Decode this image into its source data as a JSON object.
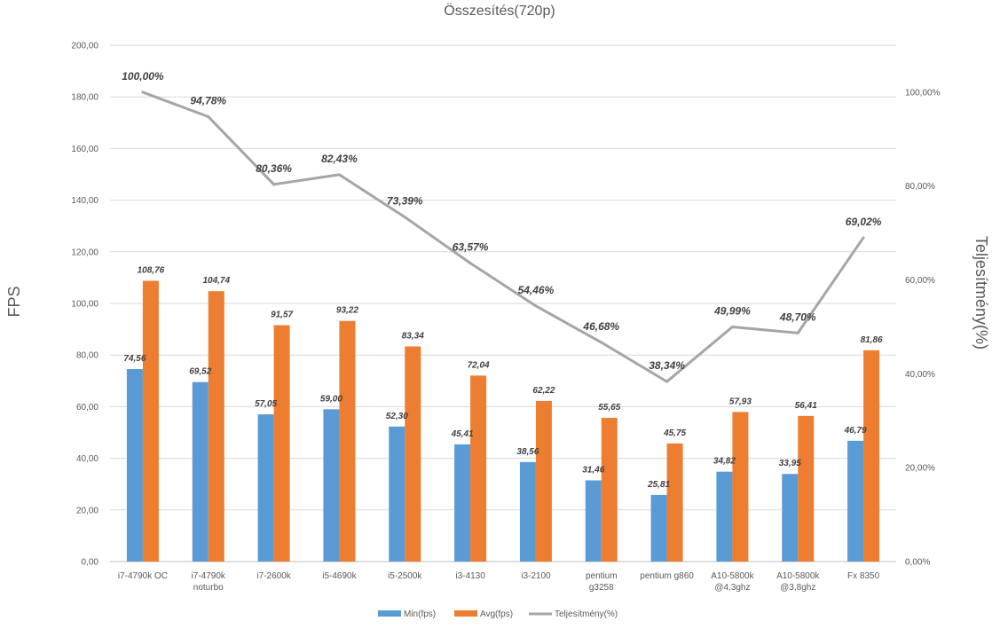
{
  "chart_data": {
    "type": "bar",
    "title": "Összesítés(720p)",
    "ylabel": "FPS",
    "y2label": "Teljesítmény(%)",
    "ylim": [
      0,
      200
    ],
    "y2lim": [
      0,
      1.1
    ],
    "yticks": [
      "0,00",
      "20,00",
      "40,00",
      "60,00",
      "80,00",
      "100,00",
      "120,00",
      "140,00",
      "160,00",
      "180,00",
      "200,00"
    ],
    "y2ticks": [
      "0,00%",
      "20,00%",
      "40,00%",
      "60,00%",
      "80,00%",
      "100,00%"
    ],
    "grid": true,
    "legend_position": "bottom",
    "categories": [
      [
        "i7-4790k OC"
      ],
      [
        "i7-4790k",
        "noturbo"
      ],
      [
        "i7-2600k"
      ],
      [
        "i5-4690k"
      ],
      [
        "i5-2500k"
      ],
      [
        "i3-4130"
      ],
      [
        "i3-2100"
      ],
      [
        "pentium",
        "g3258"
      ],
      [
        "pentium g860"
      ],
      [
        "A10-5800k",
        "@4,3ghz"
      ],
      [
        "A10-5800k",
        "@3,8ghz"
      ],
      [
        "Fx 8350"
      ]
    ],
    "series": [
      {
        "name": "Min(fps)",
        "kind": "bar",
        "color": "#5B9BD5",
        "values": [
          74.56,
          69.52,
          57.05,
          59.0,
          52.3,
          45.41,
          38.56,
          31.46,
          25.81,
          34.82,
          33.95,
          46.79
        ],
        "labels": [
          "74,56",
          "69,52",
          "57,05",
          "59,00",
          "52,30",
          "45,41",
          "38,56",
          "31,46",
          "25,81",
          "34,82",
          "33,95",
          "46,79"
        ]
      },
      {
        "name": "Avg(fps)",
        "kind": "bar",
        "color": "#ED7D31",
        "values": [
          108.76,
          104.74,
          91.57,
          93.22,
          83.34,
          72.04,
          62.22,
          55.65,
          45.75,
          57.93,
          56.41,
          81.86
        ],
        "labels": [
          "108,76",
          "104,74",
          "91,57",
          "93,22",
          "83,34",
          "72,04",
          "62,22",
          "55,65",
          "45,75",
          "57,93",
          "56,41",
          "81,86"
        ]
      },
      {
        "name": "Teljesítmény(%)",
        "kind": "line",
        "axis": "secondary",
        "color": "#A5A5A5",
        "values": [
          1.0,
          0.9478,
          0.8036,
          0.8243,
          0.7339,
          0.6357,
          0.5446,
          0.4668,
          0.3834,
          0.4999,
          0.487,
          0.6902
        ],
        "labels": [
          "100,00%",
          "94,78%",
          "80,36%",
          "82,43%",
          "73,39%",
          "63,57%",
          "54,46%",
          "46,68%",
          "38,34%",
          "49,99%",
          "48,70%",
          "69,02%"
        ]
      }
    ]
  }
}
